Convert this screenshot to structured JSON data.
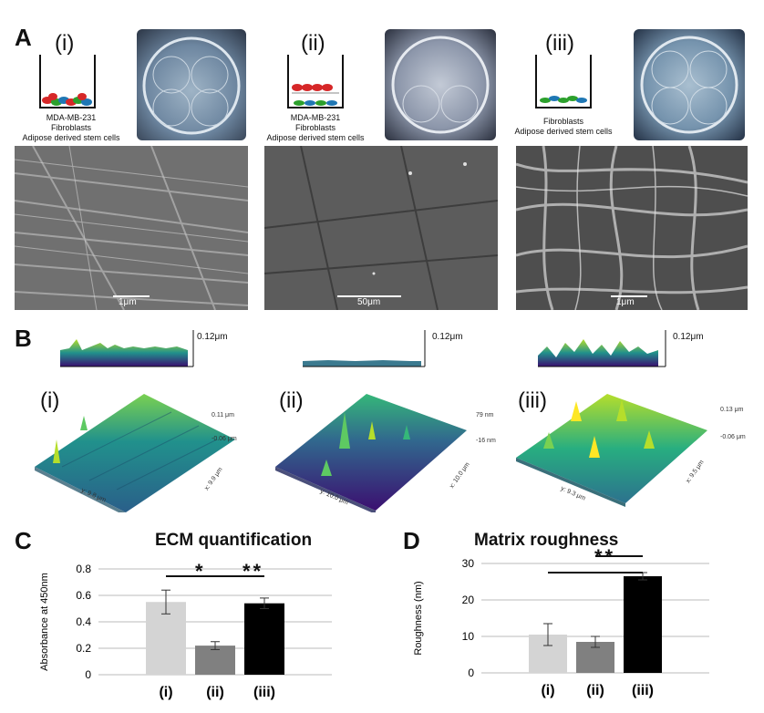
{
  "panelA": {
    "letter": "A",
    "items": [
      {
        "roman": "(i)",
        "caption": [
          "MDA-MB-231",
          "Fibroblasts",
          "Adipose derived stem cells"
        ],
        "scale": "1μm"
      },
      {
        "roman": "(ii)",
        "caption": [
          "MDA-MB-231",
          "Fibroblasts",
          "Adipose derived stem cells"
        ],
        "scale": "50μm"
      },
      {
        "roman": "(iii)",
        "caption": [
          "Fibroblasts",
          "Adipose derived stem cells"
        ],
        "scale": "1μm"
      }
    ]
  },
  "panelB": {
    "letter": "B",
    "items": [
      {
        "roman": "(i)",
        "profile_scale": "0.12μm",
        "zmax": "0.11 μm",
        "zmin": "-0.06 μm",
        "xaxis": "x: 9.9 μm",
        "yaxis": "y: 9.8 μm"
      },
      {
        "roman": "(ii)",
        "profile_scale": "0.12μm",
        "zmax": "79 nm",
        "zmin": "-16 nm",
        "xaxis": "x: 10.0 μm",
        "yaxis": "y: 10.0 μm"
      },
      {
        "roman": "(iii)",
        "profile_scale": "0.12μm",
        "zmax": "0.13 μm",
        "zmin": "-0.06 μm",
        "xaxis": "x: 9.5 μm",
        "yaxis": "y: 9.3 μm"
      }
    ]
  },
  "panelC": {
    "letter": "C",
    "sig1": "*",
    "sig2": "**"
  },
  "panelD": {
    "letter": "D",
    "sig1": "**"
  },
  "chart_data": [
    {
      "type": "bar",
      "title": "ECM quantification",
      "ylabel": "Absorbance at 450nm",
      "xlabel": "",
      "categories": [
        "(i)",
        "(ii)",
        "(iii)"
      ],
      "values": [
        0.55,
        0.22,
        0.54
      ],
      "errors": [
        0.09,
        0.03,
        0.04
      ],
      "colors": [
        "#d4d4d4",
        "#808080",
        "#000000"
      ],
      "ylim": [
        0,
        0.8
      ],
      "yticks": [
        "0",
        "0.2",
        "0.4",
        "0.6",
        "0.8"
      ],
      "grid": true
    },
    {
      "type": "bar",
      "title": "Matrix roughness",
      "ylabel": "Roughness (nm)",
      "xlabel": "",
      "categories": [
        "(i)",
        "(ii)",
        "(iii)"
      ],
      "values": [
        10.5,
        8.5,
        26.5
      ],
      "errors": [
        3.0,
        1.5,
        1.0
      ],
      "colors": [
        "#d4d4d4",
        "#808080",
        "#000000"
      ],
      "ylim": [
        0,
        30
      ],
      "yticks": [
        "0",
        "10",
        "20",
        "30"
      ],
      "grid": true
    }
  ]
}
